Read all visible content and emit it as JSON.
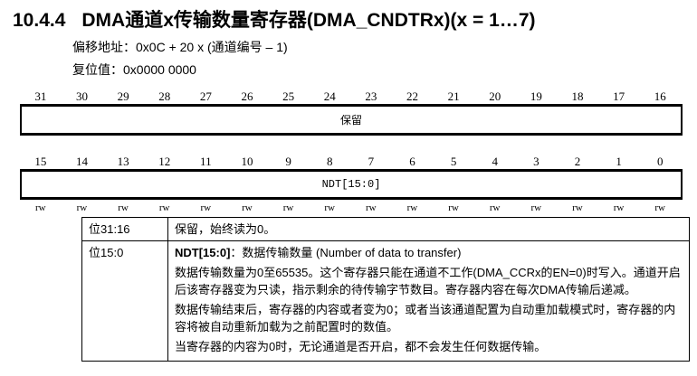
{
  "title": {
    "number": "10.4.4",
    "text": "DMA通道x传输数量寄存器(DMA_CNDTRx)(x = 1…7)"
  },
  "offset": "偏移地址：0x0C + 20 x (通道编号 – 1)",
  "reset": "复位值：0x0000 0000",
  "upper_bits": [
    "31",
    "30",
    "29",
    "28",
    "27",
    "26",
    "25",
    "24",
    "23",
    "22",
    "21",
    "20",
    "19",
    "18",
    "17",
    "16"
  ],
  "upper_field": "保留",
  "lower_bits": [
    "15",
    "14",
    "13",
    "12",
    "11",
    "10",
    "9",
    "8",
    "7",
    "6",
    "5",
    "4",
    "3",
    "2",
    "1",
    "0"
  ],
  "lower_field": "NDT[15:0]",
  "access": [
    "rw",
    "rw",
    "rw",
    "rw",
    "rw",
    "rw",
    "rw",
    "rw",
    "rw",
    "rw",
    "rw",
    "rw",
    "rw",
    "rw",
    "rw",
    "rw"
  ],
  "table": {
    "rows": [
      {
        "bits": "位31:16",
        "desc": [
          "保留，始终读为0。"
        ]
      },
      {
        "bits": "位15:0",
        "name": "NDT[15:0]",
        "name_desc": "：数据传输数量 (Number of data to transfer)",
        "desc": [
          "数据传输数量为0至65535。这个寄存器只能在通道不工作(DMA_CCRx的EN=0)时写入。通道开启后该寄存器变为只读，指示剩余的待传输字节数目。寄存器内容在每次DMA传输后递减。",
          "数据传输结束后，寄存器的内容或者变为0；或者当该通道配置为自动重加载模式时，寄存器的内容将被自动重新加载为之前配置时的数值。",
          "当寄存器的内容为0时，无论通道是否开启，都不会发生任何数据传输。"
        ]
      }
    ]
  }
}
